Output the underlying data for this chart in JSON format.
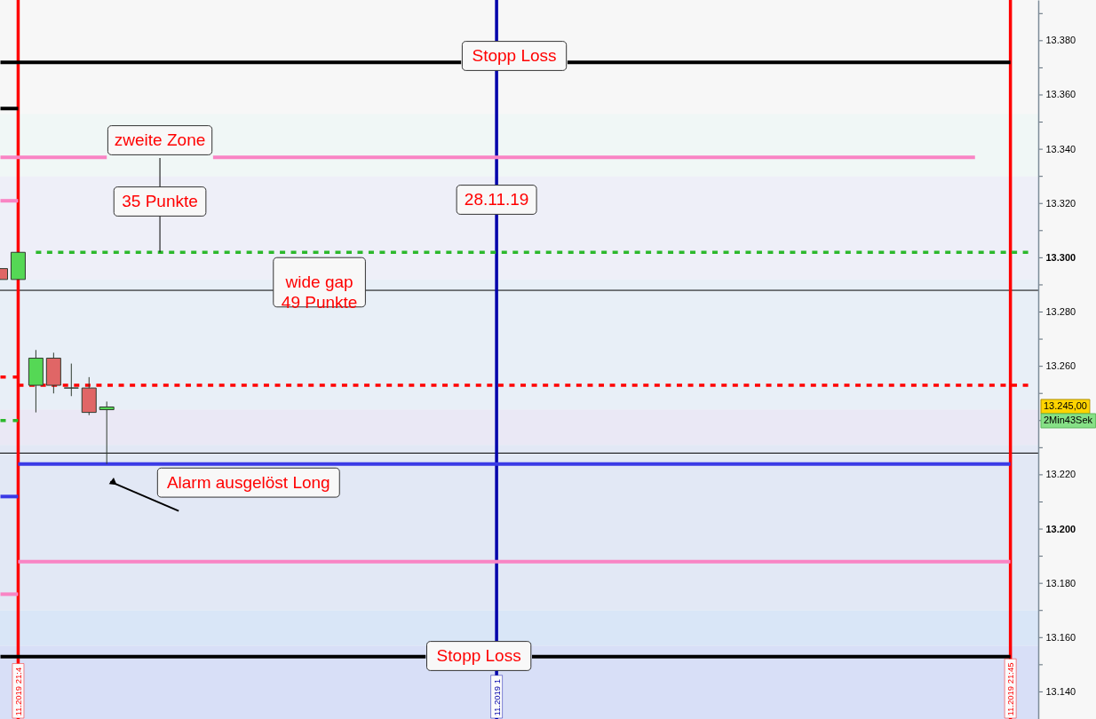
{
  "chart_data": {
    "type": "candlestick",
    "categories": [
      null,
      "11.2019 21:4",
      null,
      null,
      null,
      null,
      null,
      null,
      null,
      null,
      null,
      null,
      null,
      null,
      null,
      null,
      null,
      null,
      null,
      null,
      null,
      null,
      null,
      null,
      null,
      null,
      null,
      null,
      "11.2019 1",
      null,
      null,
      null,
      null,
      null,
      null,
      null,
      null,
      null,
      null,
      null,
      null,
      null,
      null,
      null,
      null,
      null,
      null,
      null,
      null,
      null,
      null,
      null,
      null,
      null,
      null,
      null,
      null,
      "11.2019 21:45",
      null
    ],
    "ohlc": [
      [
        13296,
        13296,
        13292,
        13292
      ],
      [
        13292,
        13302,
        13292,
        13302
      ],
      [
        13253,
        13266,
        13243,
        13263
      ],
      [
        13263,
        13265,
        13250,
        13253
      ],
      [
        13252,
        13261,
        13249,
        13252
      ],
      [
        13252,
        13256,
        13242,
        13243
      ],
      [
        13244,
        13247,
        13224,
        13245
      ],
      null,
      null,
      null,
      null,
      null,
      null,
      null,
      null,
      null,
      null,
      null,
      null,
      null,
      null,
      null,
      null,
      null,
      null,
      null,
      null,
      null,
      null,
      null,
      null,
      null,
      null,
      null,
      null,
      null,
      null,
      null,
      null,
      null,
      null,
      null,
      null,
      null,
      null,
      null,
      null,
      null,
      null,
      null,
      null,
      null,
      null,
      null,
      null,
      null,
      null,
      null,
      null
    ],
    "colors": [
      "#e06666",
      "#55d855",
      "#55d855",
      "#e06666",
      "#2f3b2f",
      "#e06666",
      "#55d855",
      null,
      null,
      null,
      null,
      null,
      null,
      null,
      null,
      null,
      null,
      null,
      null,
      null,
      null,
      null,
      null,
      null,
      null,
      null,
      null,
      null,
      null,
      null,
      null,
      null,
      null,
      null,
      null,
      null,
      null,
      null,
      null,
      null,
      null,
      null,
      null,
      null,
      null,
      null,
      null,
      null,
      null,
      null,
      null,
      null,
      null,
      null,
      null,
      null,
      null,
      null,
      null
    ],
    "ylim": [
      13130,
      13395
    ],
    "yticks": [
      {
        "value": 13140,
        "label": "13.140"
      },
      {
        "value": 13150,
        "label": null
      },
      {
        "value": 13160,
        "label": "13.160"
      },
      {
        "value": 13170,
        "label": null
      },
      {
        "value": 13180,
        "label": "13.180"
      },
      {
        "value": 13190,
        "label": null
      },
      {
        "value": 13200,
        "label": "13.200"
      },
      {
        "value": 13210,
        "label": null
      },
      {
        "value": 13220,
        "label": "13.220"
      },
      {
        "value": 13230,
        "label": null
      },
      {
        "value": 13240,
        "label": null
      },
      {
        "value": 13250,
        "label": null
      },
      {
        "value": 13260,
        "label": "13.260"
      },
      {
        "value": 13270,
        "label": null
      },
      {
        "value": 13280,
        "label": "13.280"
      },
      {
        "value": 13290,
        "label": null
      },
      {
        "value": 13300,
        "label": "13.300"
      },
      {
        "value": 13310,
        "label": null
      },
      {
        "value": 13320,
        "label": "13.320"
      },
      {
        "value": 13330,
        "label": null
      },
      {
        "value": 13340,
        "label": "13.340"
      },
      {
        "value": 13350,
        "label": null
      },
      {
        "value": 13360,
        "label": "13.360"
      },
      {
        "value": 13370,
        "label": null
      },
      {
        "value": 13380,
        "label": "13.380"
      },
      {
        "value": 13390,
        "label": null
      }
    ],
    "series": [
      {
        "type": "line",
        "color": "#000000",
        "values": [
          13372,
          13372,
          13372,
          13372,
          13372,
          13372,
          13372,
          13372,
          13372,
          13372,
          13372,
          13372,
          13372,
          13372,
          13372,
          13372,
          13372,
          13372,
          13372,
          13372,
          13372,
          13372,
          13372,
          13372,
          13372,
          13372,
          13372,
          null,
          null,
          null,
          null,
          null,
          13372,
          13372,
          13372,
          13372,
          13372,
          13372,
          13372,
          13372,
          13372,
          13372,
          13372,
          13372,
          13372,
          13372,
          13372,
          13372,
          13372,
          13372,
          13372,
          13372,
          13372,
          13372,
          13372,
          13372,
          13372,
          13372,
          null
        ]
      },
      {
        "type": "line",
        "color": "#000000",
        "values": [
          13355,
          13355,
          null,
          null,
          null,
          null,
          null,
          null,
          null,
          null,
          null,
          null,
          null,
          null,
          null,
          null,
          null,
          null,
          null,
          null,
          null,
          null,
          null,
          null,
          null,
          null,
          null,
          null,
          null,
          null,
          null,
          null,
          null,
          null,
          null,
          null,
          null,
          null,
          null,
          null,
          null,
          null,
          null,
          null,
          null,
          null,
          null,
          null,
          null,
          null,
          null,
          null,
          null,
          null,
          null,
          null,
          null,
          null,
          null
        ]
      },
      {
        "type": "line",
        "color": "#f984c4",
        "values": [
          13337,
          13337,
          13337,
          13337,
          13337,
          13337,
          13337,
          null,
          null,
          null,
          null,
          null,
          13337,
          13337,
          13337,
          13337,
          13337,
          13337,
          13337,
          13337,
          13337,
          13337,
          13337,
          13337,
          13337,
          13337,
          13337,
          13337,
          13337,
          13337,
          13337,
          13337,
          13337,
          13337,
          13337,
          13337,
          13337,
          13337,
          13337,
          13337,
          13337,
          13337,
          13337,
          13337,
          13337,
          13337,
          13337,
          13337,
          13337,
          13337,
          13337,
          13337,
          13337,
          13337,
          13337,
          13337,
          null,
          null,
          null
        ]
      },
      {
        "type": "line",
        "color": "#f984c4",
        "values": [
          13321,
          13321,
          null,
          null,
          null,
          null,
          null,
          null,
          null,
          null,
          null,
          null,
          null,
          null,
          null,
          null,
          null,
          null,
          null,
          null,
          null,
          null,
          null,
          null,
          null,
          null,
          null,
          null,
          null,
          null,
          null,
          null,
          null,
          null,
          null,
          null,
          null,
          null,
          null,
          null,
          null,
          null,
          null,
          null,
          null,
          null,
          null,
          null,
          null,
          null,
          null,
          null,
          null,
          null,
          null,
          null,
          null,
          null,
          null
        ]
      },
      {
        "type": "line",
        "color": "#2cb82c",
        "line_style": "dashed",
        "values": [
          null,
          null,
          13302,
          13302,
          13302,
          13302,
          13302,
          13302,
          13302,
          13302,
          13302,
          13302,
          13302,
          13302,
          13302,
          13302,
          13302,
          13302,
          13302,
          13302,
          13302,
          13302,
          13302,
          13302,
          13302,
          13302,
          13302,
          13302,
          13302,
          13302,
          13302,
          13302,
          13302,
          13302,
          13302,
          13302,
          13302,
          13302,
          13302,
          13302,
          13302,
          13302,
          13302,
          13302,
          13302,
          13302,
          13302,
          13302,
          13302,
          13302,
          13302,
          13302,
          13302,
          13302,
          13302,
          13302,
          13302,
          13302,
          13302
        ]
      },
      {
        "type": "line",
        "color": "#ff0000",
        "line_style": "dashed",
        "values": [
          13256,
          13256,
          null,
          null,
          null,
          null,
          null,
          null,
          null,
          null,
          null,
          null,
          null,
          null,
          null,
          null,
          null,
          null,
          null,
          null,
          null,
          null,
          null,
          null,
          null,
          null,
          null,
          null,
          null,
          null,
          null,
          null,
          null,
          null,
          null,
          null,
          null,
          null,
          null,
          null,
          null,
          null,
          null,
          null,
          null,
          null,
          null,
          null,
          null,
          null,
          null,
          null,
          null,
          null,
          null,
          null,
          null,
          null,
          null
        ]
      },
      {
        "type": "line",
        "color": "#ff0000",
        "line_style": "dashed",
        "values": [
          null,
          13253,
          13253,
          13253,
          13253,
          13253,
          13253,
          13253,
          13253,
          13253,
          13253,
          13253,
          13253,
          13253,
          13253,
          13253,
          13253,
          13253,
          13253,
          13253,
          13253,
          13253,
          13253,
          13253,
          13253,
          13253,
          13253,
          13253,
          13253,
          13253,
          13253,
          13253,
          13253,
          13253,
          13253,
          13253,
          13253,
          13253,
          13253,
          13253,
          13253,
          13253,
          13253,
          13253,
          13253,
          13253,
          13253,
          13253,
          13253,
          13253,
          13253,
          13253,
          13253,
          13253,
          13253,
          13253,
          13253,
          13253,
          13253
        ]
      },
      {
        "type": "line",
        "color": "#2cb82c",
        "line_style": "dashed",
        "values": [
          13240,
          13240,
          null,
          null,
          null,
          null,
          null,
          null,
          null,
          null,
          null,
          null,
          null,
          null,
          null,
          null,
          null,
          null,
          null,
          null,
          null,
          null,
          null,
          null,
          null,
          null,
          null,
          null,
          null,
          null,
          null,
          null,
          null,
          null,
          null,
          null,
          null,
          null,
          null,
          null,
          null,
          null,
          null,
          null,
          null,
          null,
          null,
          null,
          null,
          null,
          null,
          null,
          null,
          null,
          null,
          null,
          null,
          null,
          null
        ]
      },
      {
        "type": "line",
        "color": "#3a3ae6",
        "values": [
          null,
          13224,
          13224,
          13224,
          13224,
          13224,
          13224,
          13224,
          13224,
          13224,
          13224,
          13224,
          13224,
          13224,
          13224,
          13224,
          13224,
          13224,
          13224,
          13224,
          13224,
          13224,
          13224,
          13224,
          13224,
          13224,
          13224,
          13224,
          13224,
          13224,
          13224,
          13224,
          13224,
          13224,
          13224,
          13224,
          13224,
          13224,
          13224,
          13224,
          13224,
          13224,
          13224,
          13224,
          13224,
          13224,
          13224,
          13224,
          13224,
          13224,
          13224,
          13224,
          13224,
          13224,
          13224,
          13224,
          13224,
          13224,
          null
        ]
      },
      {
        "type": "line",
        "color": "#3a3ae6",
        "values": [
          13212,
          13212,
          null,
          null,
          null,
          null,
          null,
          null,
          null,
          null,
          null,
          null,
          null,
          null,
          null,
          null,
          null,
          null,
          null,
          null,
          null,
          null,
          null,
          null,
          null,
          null,
          null,
          null,
          null,
          null,
          null,
          null,
          null,
          null,
          null,
          null,
          null,
          null,
          null,
          null,
          null,
          null,
          null,
          null,
          null,
          null,
          null,
          null,
          null,
          null,
          null,
          null,
          null,
          null,
          null,
          null,
          null,
          null,
          null
        ]
      },
      {
        "type": "line",
        "color": "#f984c4",
        "values": [
          null,
          13188,
          13188,
          13188,
          13188,
          13188,
          13188,
          13188,
          13188,
          13188,
          13188,
          13188,
          13188,
          13188,
          13188,
          13188,
          13188,
          13188,
          13188,
          13188,
          13188,
          13188,
          13188,
          13188,
          13188,
          13188,
          13188,
          13188,
          13188,
          13188,
          13188,
          13188,
          13188,
          13188,
          13188,
          13188,
          13188,
          13188,
          13188,
          13188,
          13188,
          13188,
          13188,
          13188,
          13188,
          13188,
          13188,
          13188,
          13188,
          13188,
          13188,
          13188,
          13188,
          13188,
          13188,
          13188,
          13188,
          13188,
          null
        ]
      },
      {
        "type": "line",
        "color": "#f984c4",
        "values": [
          13176,
          13176,
          null,
          null,
          null,
          null,
          null,
          null,
          null,
          null,
          null,
          null,
          null,
          null,
          null,
          null,
          null,
          null,
          null,
          null,
          null,
          null,
          null,
          null,
          null,
          null,
          null,
          null,
          null,
          null,
          null,
          null,
          null,
          null,
          null,
          null,
          null,
          null,
          null,
          null,
          null,
          null,
          null,
          null,
          null,
          null,
          null,
          null,
          null,
          null,
          null,
          null,
          null,
          null,
          null,
          null,
          null,
          null,
          null
        ]
      },
      {
        "type": "line",
        "color": "#000000",
        "values": [
          13153,
          13153,
          13153,
          13153,
          13153,
          13153,
          13153,
          13153,
          13153,
          13153,
          13153,
          13153,
          13153,
          13153,
          13153,
          13153,
          13153,
          13153,
          13153,
          13153,
          13153,
          13153,
          13153,
          13153,
          13153,
          null,
          null,
          null,
          null,
          null,
          13153,
          13153,
          13153,
          13153,
          13153,
          13153,
          13153,
          13153,
          13153,
          13153,
          13153,
          13153,
          13153,
          13153,
          13153,
          13153,
          13153,
          13153,
          13153,
          13153,
          13153,
          13153,
          13153,
          13153,
          13153,
          13153,
          13153,
          13153,
          null
        ]
      }
    ],
    "ref_lines": [
      {
        "axis": "y",
        "value": 13288,
        "color": "#000000"
      },
      {
        "axis": "y",
        "value": 13228,
        "color": "#000000"
      },
      {
        "axis": "x",
        "value": "11.2019 21:4",
        "color": "#ff0000"
      },
      {
        "axis": "x",
        "value": "11.2019 1",
        "color": "#0000aa"
      },
      {
        "axis": "x",
        "value": "11.2019 21:45",
        "color": "#ff0000"
      }
    ],
    "bands": [
      {
        "axis": "y",
        "from": 13330,
        "to": 13353,
        "color": "#f0f7f6"
      },
      {
        "axis": "y",
        "from": 13292,
        "to": 13330,
        "color": "#eeeff8"
      },
      {
        "axis": "y",
        "from": 13244,
        "to": 13292,
        "color": "#e8eff7"
      },
      {
        "axis": "y",
        "from": 13231,
        "to": 13244,
        "color": "#eae8f5"
      },
      {
        "axis": "y",
        "from": 13170,
        "to": 13231,
        "color": "#e2e8f5"
      },
      {
        "axis": "y",
        "from": 13157,
        "to": 13170,
        "color": "#d9e6f7"
      },
      {
        "axis": "y",
        "from": 13130,
        "to": 13157,
        "color": "#d8dff7"
      }
    ],
    "annotations": [
      "Stopp Loss",
      {
        "text": "zweite Zone",
        "y": 13302
      },
      "35 Punkte",
      "28.11.19",
      "wide  gap\n49 Punkte",
      {
        "text": "Alarm ausgelöst Long",
        "y": 13224
      },
      "Stopp Loss",
      "13.245,00",
      "2Min43Sek"
    ]
  }
}
